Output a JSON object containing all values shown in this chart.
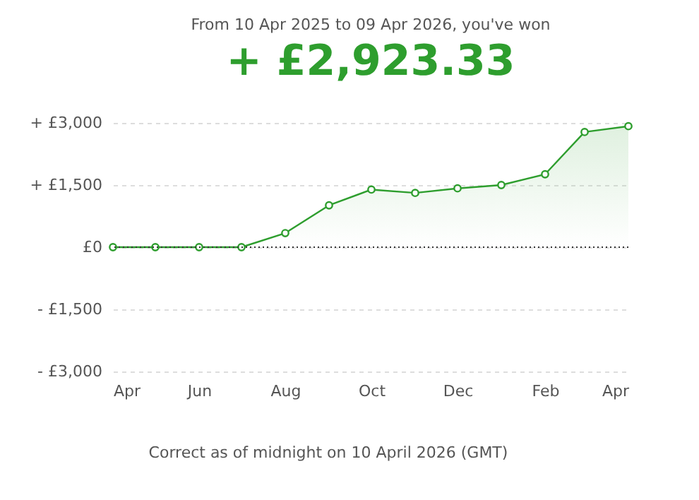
{
  "chart_data": {
    "type": "area",
    "title": "From 10 Apr 2025 to 09 Apr 2026, you've won",
    "subtitle": "+ £2,923.33",
    "x": [
      "2025-04",
      "2025-05",
      "2025-06",
      "2025-07",
      "2025-08",
      "2025-09",
      "2025-10",
      "2025-11",
      "2025-12",
      "2026-01",
      "2026-02",
      "2026-03",
      "2026-04"
    ],
    "series": [
      {
        "color": "#2e9e2e",
        "values": [
          0,
          0,
          0,
          0,
          340,
          1010,
          1390,
          1310,
          1420,
          1500,
          1760,
          2780,
          2920
        ]
      }
    ],
    "xlim": [
      "2025-04",
      "2026-04"
    ],
    "xticks": [
      {
        "value": "2025-04",
        "label": "Apr"
      },
      {
        "value": "2025-06",
        "label": "Jun"
      },
      {
        "value": "2025-08",
        "label": "Aug"
      },
      {
        "value": "2025-10",
        "label": "Oct"
      },
      {
        "value": "2025-12",
        "label": "Dec"
      },
      {
        "value": "2026-02",
        "label": "Feb"
      },
      {
        "value": "2026-04",
        "label": "Apr"
      }
    ],
    "ylim": [
      -3000,
      3000
    ],
    "yticks": [
      {
        "value": 3000,
        "label": "+ £3,000"
      },
      {
        "value": 1500,
        "label": "+ £1,500"
      },
      {
        "value": 0,
        "label": "£0"
      },
      {
        "value": -1500,
        "label": "- £1,500"
      },
      {
        "value": -3000,
        "label": "- £3,000"
      }
    ],
    "grid": "y",
    "marker": "circle",
    "line_style": "solid",
    "ref_lines": [
      {
        "axis": "y",
        "value": 0,
        "color": "#333333",
        "line_style": "dotted"
      }
    ],
    "annotations": [
      "Correct as of midnight on 10 April 2026 (GMT)"
    ]
  }
}
